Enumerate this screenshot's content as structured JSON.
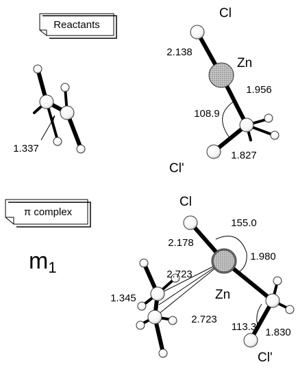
{
  "reactants": {
    "label": "Reactants",
    "ethylene": {
      "cc_distance": "1.337"
    },
    "zncl2": {
      "cl": "Cl",
      "zn": "Zn",
      "cl_prime": "Cl'",
      "zn_cl": "2.138",
      "zn_c": "1.956",
      "angle": "108.9",
      "c_cl": "1.827"
    }
  },
  "pi_complex": {
    "label": "π complex",
    "name": "m",
    "name_subscript": "1",
    "cl": "Cl",
    "zn": "Zn",
    "cl_prime": "Cl'",
    "zn_cl": "2.178",
    "angle_cl_zn_c": "155.0",
    "zn_c": "1.980",
    "zn_c1": "2.723",
    "zn_c2": "2.723",
    "cc_distance": "1.345",
    "angle_zn_c_cl": "113.3",
    "c_cl": "1.830"
  }
}
